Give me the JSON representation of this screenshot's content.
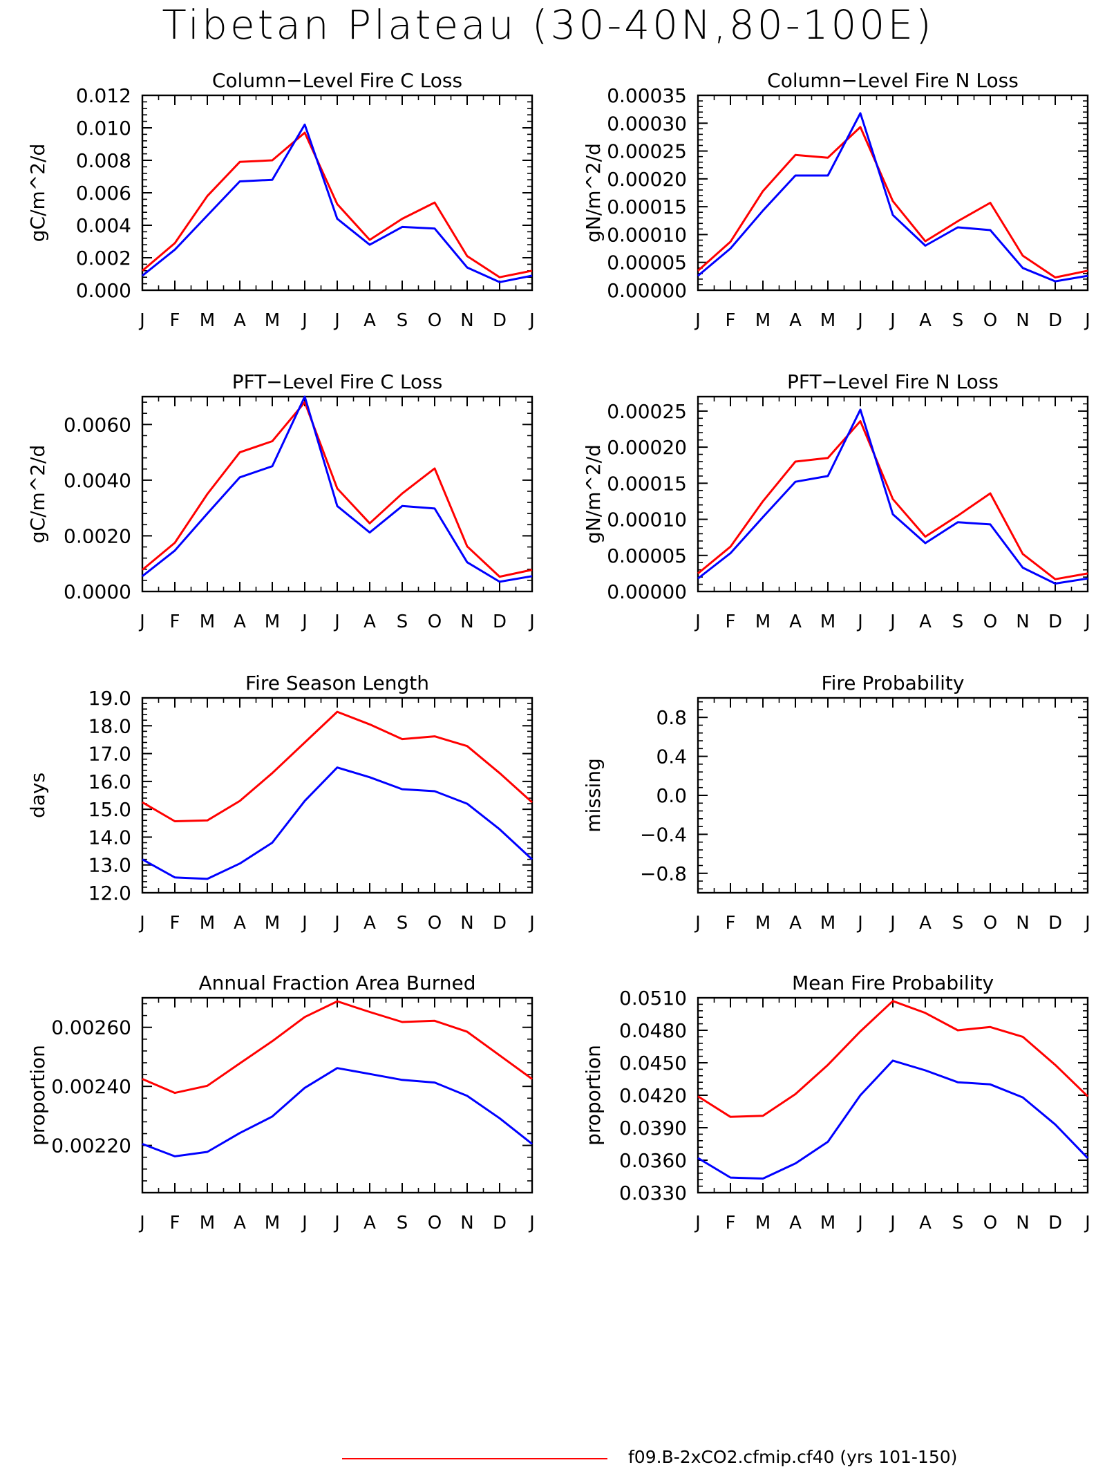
{
  "title": "Tibetan Plateau (30-40N,80-100E)",
  "colors": {
    "case1": "#ff0000",
    "case2": "#0000ff",
    "axis": "#000000"
  },
  "legend": {
    "label": "f09.B-2xCO2.cfmip.cf40 (yrs 101-150)"
  },
  "chart_data": [
    {
      "type": "line",
      "title": "Column-Level Fire C Loss",
      "ylabel": "gC/m^2/d",
      "categories": [
        "J",
        "F",
        "M",
        "A",
        "M",
        "J",
        "J",
        "A",
        "S",
        "O",
        "N",
        "D",
        "J"
      ],
      "ylim": [
        0,
        0.012
      ],
      "yticks": [
        "0.000",
        "0.002",
        "0.004",
        "0.006",
        "0.008",
        "0.010",
        "0.012"
      ],
      "series": [
        {
          "color": "#ff0000",
          "values": [
            0.0012,
            0.0029,
            0.0058,
            0.0079,
            0.008,
            0.0097,
            0.0053,
            0.0031,
            0.0044,
            0.0054,
            0.0021,
            0.0008,
            0.0012
          ]
        },
        {
          "color": "#0000ff",
          "values": [
            0.0009,
            0.0025,
            0.0046,
            0.0067,
            0.0068,
            0.0102,
            0.0044,
            0.0028,
            0.0039,
            0.0038,
            0.0014,
            0.0005,
            0.0009
          ]
        }
      ]
    },
    {
      "type": "line",
      "title": "Column-Level Fire N Loss",
      "ylabel": "gN/m^2/d",
      "categories": [
        "J",
        "F",
        "M",
        "A",
        "M",
        "J",
        "J",
        "A",
        "S",
        "O",
        "N",
        "D",
        "J"
      ],
      "ylim": [
        0,
        0.00035
      ],
      "yticks": [
        "0.00000",
        "0.00005",
        "0.00010",
        "0.00015",
        "0.00020",
        "0.00025",
        "0.00030",
        "0.00035"
      ],
      "series": [
        {
          "color": "#ff0000",
          "values": [
            3.5e-05,
            8.7e-05,
            0.000178,
            0.000243,
            0.000238,
            0.000293,
            0.00016,
            8.8e-05,
            0.000124,
            0.000157,
            6.2e-05,
            2.3e-05,
            3.5e-05
          ]
        },
        {
          "color": "#0000ff",
          "values": [
            2.6e-05,
            7.5e-05,
            0.000143,
            0.000206,
            0.000206,
            0.000318,
            0.000135,
            8e-05,
            0.000113,
            0.000108,
            4e-05,
            1.6e-05,
            2.6e-05
          ]
        }
      ]
    },
    {
      "type": "line",
      "title": "PFT-Level Fire C Loss",
      "ylabel": "gC/m^2/d",
      "categories": [
        "J",
        "F",
        "M",
        "A",
        "M",
        "J",
        "J",
        "A",
        "S",
        "O",
        "N",
        "D",
        "J"
      ],
      "ylim": [
        0,
        0.007
      ],
      "yticks": [
        "0.0000",
        "0.0020",
        "0.0040",
        "0.0060"
      ],
      "ytick_values": [
        0,
        0.002,
        0.004,
        0.006
      ],
      "series": [
        {
          "color": "#ff0000",
          "values": [
            0.00078,
            0.00175,
            0.0035,
            0.005,
            0.0054,
            0.0068,
            0.0037,
            0.00245,
            0.00352,
            0.00442,
            0.00162,
            0.00053,
            0.00078
          ]
        },
        {
          "color": "#0000ff",
          "values": [
            0.00055,
            0.00147,
            0.0028,
            0.0041,
            0.0045,
            0.007,
            0.00307,
            0.00212,
            0.00307,
            0.00298,
            0.00105,
            0.00035,
            0.00055
          ]
        }
      ]
    },
    {
      "type": "line",
      "title": "PFT-Level Fire N Loss",
      "ylabel": "gN/m^2/d",
      "categories": [
        "J",
        "F",
        "M",
        "A",
        "M",
        "J",
        "J",
        "A",
        "S",
        "O",
        "N",
        "D",
        "J"
      ],
      "ylim": [
        0,
        0.00027
      ],
      "yticks": [
        "0.00000",
        "0.00005",
        "0.00010",
        "0.00015",
        "0.00020",
        "0.00025"
      ],
      "ytick_values": [
        0,
        5e-05,
        0.0001,
        0.00015,
        0.0002,
        0.00025
      ],
      "series": [
        {
          "color": "#ff0000",
          "values": [
            2.5e-05,
            6.2e-05,
            0.000125,
            0.00018,
            0.000185,
            0.000236,
            0.000128,
            7.6e-05,
            0.000105,
            0.000136,
            5.2e-05,
            1.7e-05,
            2.5e-05
          ]
        },
        {
          "color": "#0000ff",
          "values": [
            1.8e-05,
            5.3e-05,
            0.000103,
            0.000152,
            0.00016,
            0.000252,
            0.000107,
            6.7e-05,
            9.6e-05,
            9.3e-05,
            3.3e-05,
            1.1e-05,
            1.8e-05
          ]
        }
      ]
    },
    {
      "type": "line",
      "title": "Fire Season Length",
      "ylabel": "days",
      "categories": [
        "J",
        "F",
        "M",
        "A",
        "M",
        "J",
        "J",
        "A",
        "S",
        "O",
        "N",
        "D",
        "J"
      ],
      "ylim": [
        12,
        19
      ],
      "yticks": [
        "12.0",
        "13.0",
        "14.0",
        "15.0",
        "16.0",
        "17.0",
        "18.0",
        "19.0"
      ],
      "series": [
        {
          "color": "#ff0000",
          "values": [
            15.25,
            14.57,
            14.6,
            15.3,
            16.3,
            17.4,
            18.5,
            18.05,
            17.52,
            17.62,
            17.27,
            16.3,
            15.25
          ]
        },
        {
          "color": "#0000ff",
          "values": [
            13.2,
            12.55,
            12.5,
            13.05,
            13.8,
            15.3,
            16.5,
            16.15,
            15.72,
            15.65,
            15.2,
            14.28,
            13.2
          ]
        }
      ]
    },
    {
      "type": "line",
      "title": "Fire Probability",
      "ylabel": "missing",
      "categories": [
        "J",
        "F",
        "M",
        "A",
        "M",
        "J",
        "J",
        "A",
        "S",
        "O",
        "N",
        "D",
        "J"
      ],
      "ylim": [
        -1,
        1
      ],
      "yticks": [
        "-0.8",
        "-0.4",
        "0.0",
        "0.4",
        "0.8"
      ],
      "ytick_values": [
        -0.8,
        -0.4,
        0,
        0.4,
        0.8
      ],
      "series": []
    },
    {
      "type": "line",
      "title": "Annual Fraction Area Burned",
      "ylabel": "proportion",
      "categories": [
        "J",
        "F",
        "M",
        "A",
        "M",
        "J",
        "J",
        "A",
        "S",
        "O",
        "N",
        "D",
        "J"
      ],
      "ylim": [
        0.00204,
        0.0027
      ],
      "yticks": [
        "0.00220",
        "0.00240",
        "0.00260"
      ],
      "ytick_values": [
        0.0022,
        0.0024,
        0.0026
      ],
      "series": [
        {
          "color": "#ff0000",
          "values": [
            0.002425,
            0.002378,
            0.002402,
            0.002478,
            0.002553,
            0.002635,
            0.002688,
            0.002652,
            0.002618,
            0.002622,
            0.002585,
            0.002505,
            0.002425
          ]
        },
        {
          "color": "#0000ff",
          "values": [
            0.002205,
            0.002163,
            0.002178,
            0.002242,
            0.002298,
            0.002395,
            0.002462,
            0.002442,
            0.002422,
            0.002413,
            0.002368,
            0.002292,
            0.002205
          ]
        }
      ]
    },
    {
      "type": "line",
      "title": "Mean Fire Probability",
      "ylabel": "proportion",
      "categories": [
        "J",
        "F",
        "M",
        "A",
        "M",
        "J",
        "J",
        "A",
        "S",
        "O",
        "N",
        "D",
        "J"
      ],
      "ylim": [
        0.033,
        0.051
      ],
      "yticks": [
        "0.0330",
        "0.0360",
        "0.0390",
        "0.0420",
        "0.0450",
        "0.0480",
        "0.0510"
      ],
      "series": [
        {
          "color": "#ff0000",
          "values": [
            0.0419,
            0.04,
            0.0401,
            0.0421,
            0.0448,
            0.0479,
            0.0507,
            0.0496,
            0.048,
            0.0483,
            0.0474,
            0.0448,
            0.0419
          ]
        },
        {
          "color": "#0000ff",
          "values": [
            0.0362,
            0.0344,
            0.0343,
            0.0357,
            0.0377,
            0.042,
            0.0452,
            0.0443,
            0.0432,
            0.043,
            0.0418,
            0.0393,
            0.0362
          ]
        }
      ]
    }
  ]
}
